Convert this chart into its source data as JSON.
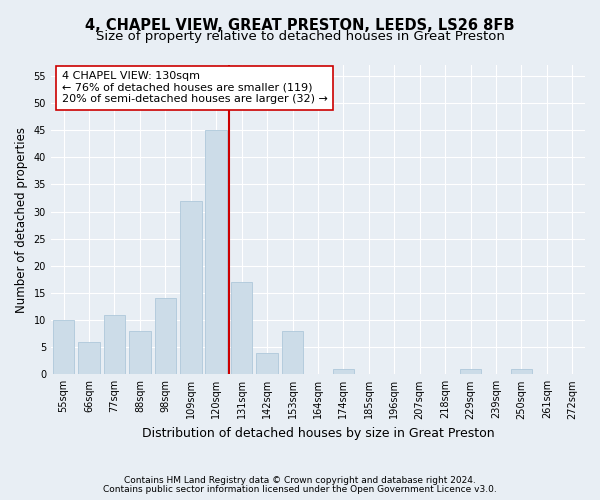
{
  "title": "4, CHAPEL VIEW, GREAT PRESTON, LEEDS, LS26 8FB",
  "subtitle": "Size of property relative to detached houses in Great Preston",
  "xlabel": "Distribution of detached houses by size in Great Preston",
  "ylabel": "Number of detached properties",
  "categories": [
    "55sqm",
    "66sqm",
    "77sqm",
    "88sqm",
    "98sqm",
    "109sqm",
    "120sqm",
    "131sqm",
    "142sqm",
    "153sqm",
    "164sqm",
    "174sqm",
    "185sqm",
    "196sqm",
    "207sqm",
    "218sqm",
    "229sqm",
    "239sqm",
    "250sqm",
    "261sqm",
    "272sqm"
  ],
  "values": [
    10,
    6,
    11,
    8,
    14,
    32,
    45,
    17,
    4,
    8,
    0,
    1,
    0,
    0,
    0,
    0,
    1,
    0,
    1,
    0,
    0
  ],
  "bar_color": "#ccdce8",
  "bar_edge_color": "#aec8da",
  "vline_color": "#cc0000",
  "annotation_text": "4 CHAPEL VIEW: 130sqm\n← 76% of detached houses are smaller (119)\n20% of semi-detached houses are larger (32) →",
  "annotation_box_facecolor": "#ffffff",
  "annotation_box_edgecolor": "#cc0000",
  "yticks": [
    0,
    5,
    10,
    15,
    20,
    25,
    30,
    35,
    40,
    45,
    50,
    55
  ],
  "ylim": [
    0,
    57
  ],
  "footer_line1": "Contains HM Land Registry data © Crown copyright and database right 2024.",
  "footer_line2": "Contains public sector information licensed under the Open Government Licence v3.0.",
  "background_color": "#e8eef4",
  "plot_background_color": "#e8eef4",
  "grid_color": "#ffffff",
  "title_fontsize": 10.5,
  "subtitle_fontsize": 9.5,
  "tick_fontsize": 7,
  "ylabel_fontsize": 8.5,
  "xlabel_fontsize": 9,
  "annotation_fontsize": 8,
  "footer_fontsize": 6.5
}
